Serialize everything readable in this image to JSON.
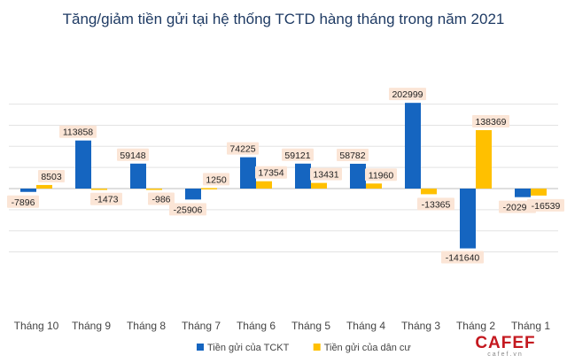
{
  "chart_data": {
    "type": "bar",
    "title": "Tăng/giảm tiền gửi tại hệ thống TCTD hàng tháng trong năm 2021",
    "categories": [
      "Tháng 10",
      "Tháng 9",
      "Tháng 8",
      "Tháng 7",
      "Tháng 6",
      "Tháng 5",
      "Tháng 4",
      "Tháng 3",
      "Tháng 2",
      "Tháng 1"
    ],
    "series": [
      {
        "name": "Tiền gửi của TCKT",
        "color": "#1565c0",
        "values": [
          -7896,
          113858,
          59148,
          -25906,
          74225,
          59121,
          58782,
          202999,
          -141640,
          -20296
        ]
      },
      {
        "name": "Tiền gửi của dân cư",
        "color": "#ffc000",
        "values": [
          8503,
          -1473,
          -986,
          1250,
          17354,
          13431,
          11960,
          -13365,
          138369,
          -16539
        ]
      }
    ],
    "ylim": [
      -200000,
      250000
    ],
    "grid": true,
    "legend_position": "bottom",
    "label_background": "#fbe5d6"
  },
  "watermark": {
    "brand": "CAFEF",
    "domain": "cafef.vn"
  }
}
